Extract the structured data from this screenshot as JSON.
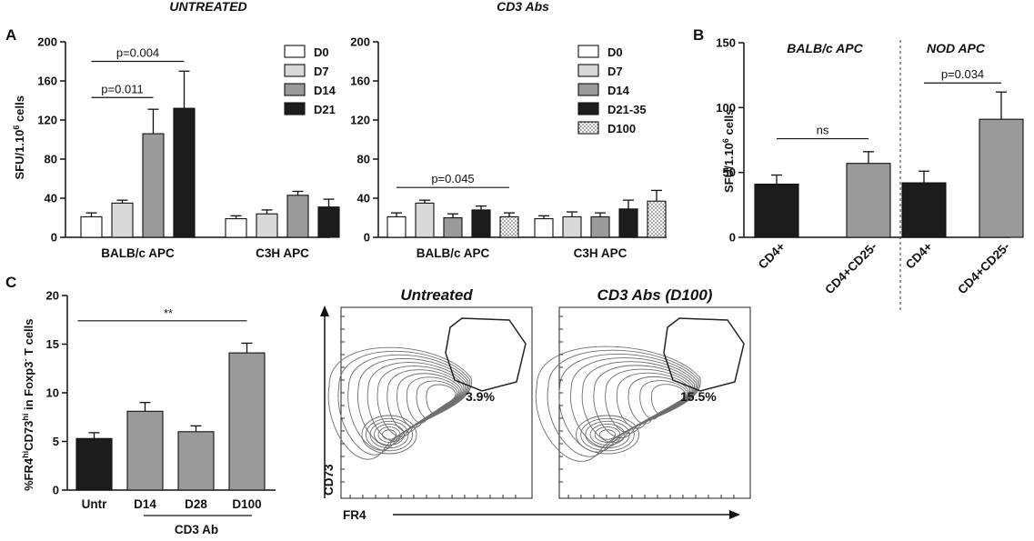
{
  "panel_labels": [
    "A",
    "B",
    "C"
  ],
  "colors": {
    "white": "#ffffff",
    "light_gray": "#d9d9d9",
    "mid_gray": "#9a9a9a",
    "black": "#1c1c1c",
    "axis": "#111111",
    "contour": "#6e6e6e"
  },
  "chart_data": [
    {
      "id": "A_untreated",
      "type": "bar",
      "title": "UNTREATED",
      "ylabel": "SFU/1.10^6 cells",
      "ylim": [
        0,
        200
      ],
      "yticks": [
        0,
        40,
        80,
        120,
        160,
        200
      ],
      "categories": [
        "BALB/c APC",
        "C3H APC"
      ],
      "series": [
        {
          "name": "D0",
          "fill": "white",
          "values": [
            21,
            19
          ],
          "errors": [
            4,
            3
          ]
        },
        {
          "name": "D7",
          "fill": "light_gray",
          "values": [
            35,
            24
          ],
          "errors": [
            3,
            4
          ]
        },
        {
          "name": "D14",
          "fill": "mid_gray",
          "values": [
            106,
            43
          ],
          "errors": [
            25,
            4
          ]
        },
        {
          "name": "D21",
          "fill": "black",
          "values": [
            132,
            31
          ],
          "errors": [
            38,
            8
          ]
        }
      ],
      "annotations": [
        {
          "text": "p=0.011",
          "category": 0,
          "from": 0,
          "to": 2,
          "y": 143
        },
        {
          "text": "p=0.004",
          "category": 0,
          "from": 0,
          "to": 3,
          "y": 180
        }
      ]
    },
    {
      "id": "A_cd3",
      "type": "bar",
      "title": "CD3 Abs",
      "ylabel": "",
      "ylim": [
        0,
        200
      ],
      "yticks": [
        0,
        40,
        80,
        120,
        160,
        200
      ],
      "categories": [
        "BALB/c APC",
        "C3H APC"
      ],
      "series": [
        {
          "name": "D0",
          "fill": "white",
          "values": [
            21,
            19
          ],
          "errors": [
            4,
            3
          ]
        },
        {
          "name": "D7",
          "fill": "light_gray",
          "values": [
            35,
            21
          ],
          "errors": [
            3,
            5
          ]
        },
        {
          "name": "D14",
          "fill": "mid_gray",
          "values": [
            20,
            21
          ],
          "errors": [
            4,
            4
          ]
        },
        {
          "name": "D21-35",
          "fill": "black",
          "values": [
            28,
            29
          ],
          "errors": [
            4,
            9
          ]
        },
        {
          "name": "D100",
          "fill": "dots",
          "values": [
            21,
            37
          ],
          "errors": [
            4,
            11
          ]
        }
      ],
      "annotations": [
        {
          "text": "p=0.045",
          "category": 0,
          "from": 0,
          "to": 4,
          "y": 51
        }
      ]
    },
    {
      "id": "B",
      "type": "bar",
      "title": "",
      "group_titles": [
        "BALB/c APC",
        "NOD APC"
      ],
      "ylabel": "SFU/1.10^6 cells",
      "ylim": [
        0,
        150
      ],
      "yticks": [
        0,
        50,
        100,
        150
      ],
      "categories": [
        "CD4+",
        "CD4+CD25-",
        "CD4+",
        "CD4+CD25-"
      ],
      "fills": [
        "black",
        "mid_gray",
        "black",
        "mid_gray"
      ],
      "values": [
        41,
        57,
        42,
        91
      ],
      "errors": [
        7,
        9,
        9,
        21
      ],
      "annotations": [
        {
          "text": "ns",
          "from": 0,
          "to": 1,
          "y": 76
        },
        {
          "text": "p=0.034",
          "from": 2,
          "to": 3,
          "y": 119
        }
      ]
    },
    {
      "id": "C",
      "type": "bar",
      "title": "",
      "ylabel": "%FR4hiCD73hi in Foxp3- T cells",
      "ylim": [
        0,
        20
      ],
      "yticks": [
        0,
        5,
        10,
        15,
        20
      ],
      "categories": [
        "Untr",
        "D14",
        "D28",
        "D100"
      ],
      "fills": [
        "black",
        "mid_gray",
        "mid_gray",
        "mid_gray"
      ],
      "values": [
        5.3,
        8.1,
        6.0,
        14.1
      ],
      "errors": [
        0.6,
        0.9,
        0.6,
        1.0
      ],
      "group_label": "CD3 Ab",
      "annotations": [
        {
          "text": "**",
          "from": 0,
          "to": 3,
          "y": 17.4
        }
      ]
    }
  ],
  "flow": {
    "titles": [
      "Untreated",
      "CD3 Abs (D100)"
    ],
    "percentages": [
      "3.9%",
      "15.5%"
    ],
    "xlabel": "FR4",
    "ylabel": "CD73"
  }
}
